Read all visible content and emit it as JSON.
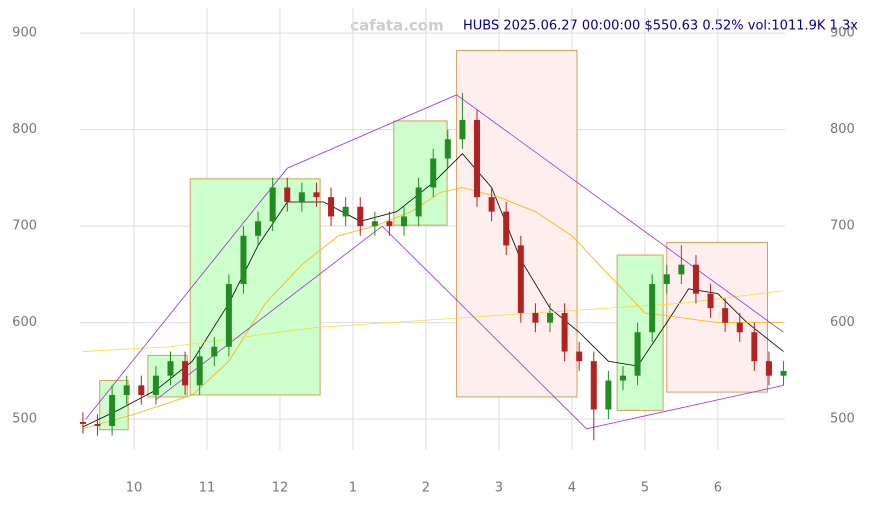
{
  "chart_data": {
    "type": "candlestick",
    "title": "HUBS 2025.06.27 00:00:00 $550.63 0.52% vol:1011.9K 1.3x",
    "watermark": "cafata.com",
    "xlim": [
      9.26,
      18.92
    ],
    "ylim": [
      468,
      926
    ],
    "grid": true,
    "xticks": [
      {
        "value": 10,
        "label": "10"
      },
      {
        "value": 11,
        "label": "11"
      },
      {
        "value": 12,
        "label": "12"
      },
      {
        "value": 13,
        "label": "1"
      },
      {
        "value": 14,
        "label": "2"
      },
      {
        "value": 15,
        "label": "3"
      },
      {
        "value": 16,
        "label": "4"
      },
      {
        "value": 17,
        "label": "5"
      },
      {
        "value": 18,
        "label": "6"
      }
    ],
    "yticks": [
      500,
      600,
      700,
      800,
      900
    ],
    "up_color": "#228b22",
    "down_color": "#b22222",
    "x": [
      9.3,
      9.5,
      9.7,
      9.9,
      10.1,
      10.3,
      10.5,
      10.7,
      10.9,
      11.1,
      11.3,
      11.5,
      11.7,
      11.9,
      12.1,
      12.3,
      12.5,
      12.7,
      12.9,
      13.1,
      13.3,
      13.5,
      13.7,
      13.9,
      14.1,
      14.3,
      14.5,
      14.7,
      14.9,
      15.1,
      15.3,
      15.5,
      15.7,
      15.9,
      16.1,
      16.3,
      16.5,
      16.7,
      16.9,
      17.1,
      17.3,
      17.5,
      17.7,
      17.9,
      18.1,
      18.3,
      18.5,
      18.7,
      18.9
    ],
    "open": [
      497,
      495,
      493,
      525,
      535,
      525,
      545,
      560,
      535,
      565,
      575,
      640,
      690,
      705,
      740,
      725,
      735,
      730,
      710,
      720,
      700,
      705,
      700,
      710,
      740,
      770,
      790,
      810,
      730,
      715,
      680,
      610,
      600,
      610,
      570,
      560,
      510,
      540,
      545,
      590,
      640,
      650,
      660,
      630,
      615,
      600,
      590,
      560,
      545
    ],
    "high": [
      507,
      505,
      535,
      545,
      545,
      555,
      570,
      570,
      575,
      585,
      650,
      700,
      715,
      750,
      750,
      745,
      745,
      740,
      730,
      730,
      715,
      715,
      720,
      750,
      780,
      800,
      838,
      820,
      740,
      725,
      690,
      620,
      620,
      620,
      580,
      570,
      550,
      555,
      600,
      650,
      660,
      680,
      670,
      640,
      625,
      610,
      600,
      570,
      560
    ],
    "low": [
      485,
      483,
      483,
      515,
      515,
      515,
      535,
      525,
      525,
      555,
      565,
      630,
      680,
      695,
      715,
      715,
      720,
      700,
      700,
      690,
      690,
      690,
      690,
      700,
      730,
      760,
      780,
      720,
      705,
      670,
      600,
      590,
      590,
      560,
      550,
      478,
      500,
      530,
      535,
      580,
      630,
      640,
      620,
      605,
      590,
      580,
      550,
      535,
      535
    ],
    "close": [
      495,
      493,
      525,
      535,
      525,
      545,
      560,
      535,
      565,
      575,
      640,
      690,
      705,
      740,
      725,
      735,
      730,
      710,
      720,
      700,
      705,
      700,
      710,
      740,
      770,
      790,
      810,
      730,
      715,
      680,
      610,
      600,
      610,
      570,
      560,
      510,
      540,
      545,
      590,
      640,
      650,
      660,
      630,
      615,
      600,
      590,
      560,
      545,
      550
    ],
    "boxes": [
      {
        "x0": 9.53,
        "x1": 9.92,
        "y0": 489,
        "y1": 540,
        "color": "#ccffcc"
      },
      {
        "x0": 10.19,
        "x1": 10.73,
        "y0": 523,
        "y1": 566,
        "color": "#ccffcc"
      },
      {
        "x0": 10.77,
        "x1": 12.55,
        "y0": 525,
        "y1": 749,
        "color": "#ccffcc"
      },
      {
        "x0": 13.56,
        "x1": 14.29,
        "y0": 701,
        "y1": 809,
        "color": "#ccffcc"
      },
      {
        "x0": 14.42,
        "x1": 16.07,
        "y0": 523,
        "y1": 882,
        "color": "#ffeeee"
      },
      {
        "x0": 16.62,
        "x1": 17.25,
        "y0": 509,
        "y1": 670,
        "color": "#ccffcc"
      },
      {
        "x0": 17.3,
        "x1": 18.68,
        "y0": 528,
        "y1": 683,
        "color": "#ffeeee"
      }
    ],
    "lines": [
      {
        "color": "#000000",
        "x": [
          9.3,
          9.8,
          10.3,
          10.8,
          11.3,
          11.7,
          12.1,
          12.6,
          13.1,
          13.6,
          14.1,
          14.5,
          14.9,
          15.3,
          15.7,
          16.1,
          16.5,
          16.9,
          17.3,
          17.6,
          18.0,
          18.4,
          18.9
        ],
        "y": [
          492,
          510,
          530,
          560,
          620,
          680,
          725,
          725,
          705,
          715,
          745,
          775,
          740,
          665,
          615,
          590,
          560,
          555,
          600,
          635,
          630,
          600,
          570
        ]
      },
      {
        "color": "#ffb000",
        "x": [
          9.3,
          10.0,
          10.8,
          11.3,
          11.8,
          12.3,
          12.8,
          13.3,
          13.8,
          14.2,
          14.5,
          15.0,
          15.5,
          16.0,
          16.5,
          17.0,
          17.5,
          18.0,
          18.9
        ],
        "y": [
          490,
          505,
          525,
          560,
          620,
          660,
          690,
          700,
          715,
          735,
          740,
          730,
          715,
          690,
          650,
          610,
          605,
          600,
          600
        ]
      },
      {
        "color": "#f0e040",
        "x": [
          9.3,
          10.5,
          11.5,
          12.5,
          13.5,
          14.5,
          15.5,
          16.5,
          17.5,
          18.9
        ],
        "y": [
          570,
          575,
          585,
          595,
          600,
          605,
          610,
          615,
          620,
          633
        ]
      },
      {
        "color": "#9932cc",
        "x": [
          9.34,
          12.1,
          14.42,
          18.9
        ],
        "y": [
          500,
          760,
          836,
          590
        ]
      },
      {
        "color": "#9932cc",
        "x": [
          10.3,
          13.4,
          16.2,
          18.9
        ],
        "y": [
          520,
          700,
          490,
          535
        ]
      }
    ]
  }
}
